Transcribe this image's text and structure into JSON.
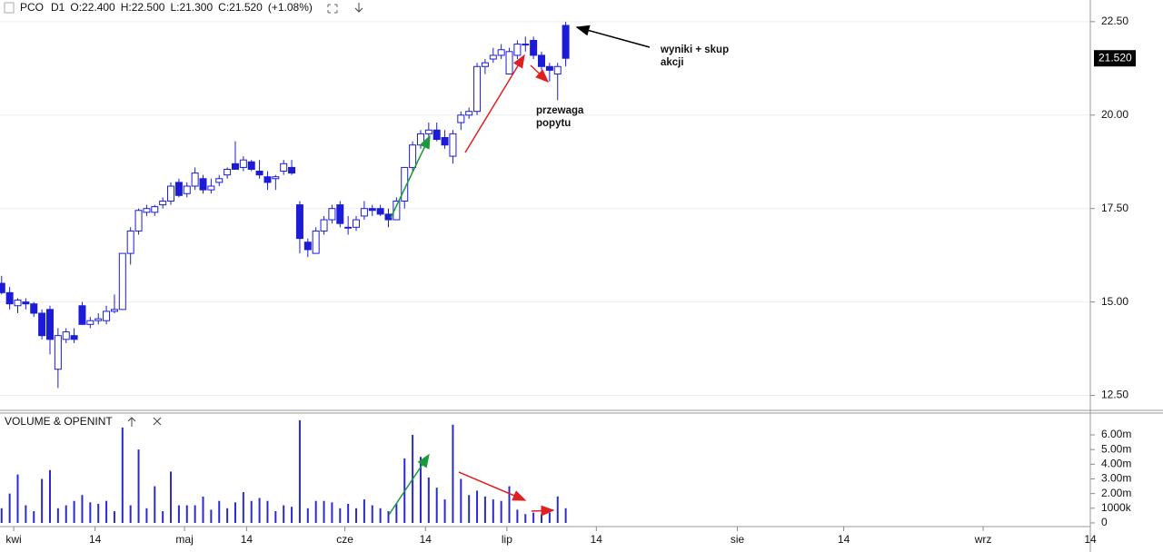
{
  "chart_data": [
    {
      "type": "candlestick",
      "title": "PCO",
      "timeframe": "D1",
      "ohlc_labels": [
        "O:22.400",
        "H:22.500",
        "L:21.300",
        "C:21.520",
        "(+1.08%)"
      ],
      "color_up": "#ffffff",
      "color_down": "#1c1cd8",
      "grid": true,
      "xlim": [
        -0.2,
        135.1
      ],
      "xticks": [
        {
          "value": 1.5,
          "label": "kwi"
        },
        {
          "value": 11.6,
          "label": "14"
        },
        {
          "value": 22.7,
          "label": "maj"
        },
        {
          "value": 30.4,
          "label": "14"
        },
        {
          "value": 42.6,
          "label": "cze"
        },
        {
          "value": 52.6,
          "label": "14"
        },
        {
          "value": 62.7,
          "label": "lip"
        },
        {
          "value": 73.8,
          "label": "14"
        },
        {
          "value": 91.3,
          "label": "sie"
        },
        {
          "value": 104.5,
          "label": "14"
        },
        {
          "value": 121.8,
          "label": "wrz"
        },
        {
          "value": 135.1,
          "label": "14"
        }
      ],
      "ylim": [
        12.1,
        23.08
      ],
      "yticks": [
        {
          "value": 12.5,
          "label": "12.50"
        },
        {
          "value": 15,
          "label": "15.00"
        },
        {
          "value": 17.5,
          "label": "17.50"
        },
        {
          "value": 20,
          "label": "20.00"
        },
        {
          "value": 22.5,
          "label": "22.50"
        }
      ],
      "last_price": {
        "value": 21.52,
        "label": "21.520"
      },
      "open": [
        15.5,
        15.25,
        14.9,
        15.0,
        14.95,
        14.7,
        14.8,
        13.2,
        14.0,
        14.1,
        14.9,
        14.4,
        14.5,
        14.5,
        14.75,
        14.8,
        16.3,
        16.9,
        17.4,
        17.4,
        17.6,
        17.7,
        18.2,
        17.9,
        18.1,
        18.3,
        18.0,
        18.2,
        18.4,
        18.7,
        18.6,
        18.75,
        18.5,
        18.35,
        18.3,
        18.5,
        18.6,
        17.6,
        16.6,
        16.3,
        16.9,
        17.2,
        17.6,
        17.0,
        17.0,
        17.3,
        17.5,
        17.5,
        17.35,
        17.2,
        17.7,
        18.6,
        19.2,
        19.5,
        19.6,
        19.4,
        18.9,
        19.8,
        20.0,
        20.1,
        21.3,
        21.5,
        21.6,
        21.1,
        21.6,
        21.9,
        22.0,
        21.6,
        21.3,
        21.1,
        22.4
      ],
      "high": [
        15.7,
        15.4,
        15.1,
        15.1,
        15.0,
        14.8,
        14.9,
        14.3,
        14.3,
        14.3,
        15.0,
        14.6,
        14.7,
        14.9,
        15.2,
        16.3,
        17.0,
        17.5,
        17.6,
        17.6,
        17.8,
        18.2,
        18.3,
        18.2,
        18.6,
        18.4,
        18.3,
        18.4,
        18.6,
        19.3,
        18.9,
        18.8,
        18.8,
        18.5,
        18.4,
        18.8,
        18.8,
        17.7,
        16.7,
        17.0,
        17.3,
        17.6,
        17.7,
        17.3,
        17.3,
        17.7,
        17.6,
        17.6,
        17.5,
        17.8,
        18.6,
        19.3,
        19.6,
        19.8,
        19.8,
        19.6,
        19.6,
        20.1,
        20.2,
        21.4,
        21.5,
        21.8,
        21.9,
        21.8,
        22.0,
        22.1,
        22.1,
        21.7,
        21.4,
        21.4,
        22.5
      ],
      "low": [
        15.2,
        14.8,
        14.7,
        14.8,
        14.6,
        14.0,
        13.6,
        12.7,
        13.9,
        13.9,
        14.4,
        14.3,
        14.4,
        14.4,
        14.7,
        14.8,
        16.0,
        16.8,
        17.3,
        17.3,
        17.5,
        17.6,
        17.8,
        17.8,
        18.0,
        17.9,
        17.9,
        18.1,
        18.3,
        18.6,
        18.5,
        18.5,
        18.3,
        18.0,
        18.0,
        18.4,
        18.4,
        16.3,
        16.2,
        16.3,
        16.8,
        17.1,
        17.0,
        16.8,
        16.9,
        17.2,
        17.3,
        17.3,
        17.0,
        17.2,
        17.5,
        18.5,
        19.1,
        19.3,
        19.3,
        19.1,
        18.7,
        19.6,
        19.9,
        20.0,
        21.1,
        21.4,
        21.5,
        21.1,
        21.5,
        21.7,
        21.5,
        21.2,
        20.9,
        20.4,
        21.3
      ],
      "close": [
        15.25,
        14.95,
        15.05,
        14.95,
        14.7,
        14.1,
        14.0,
        14.1,
        14.2,
        14.0,
        14.4,
        14.5,
        14.55,
        14.75,
        14.8,
        16.3,
        16.9,
        17.45,
        17.5,
        17.55,
        17.7,
        18.1,
        17.85,
        18.1,
        18.45,
        18.0,
        18.1,
        18.3,
        18.55,
        18.55,
        18.8,
        18.55,
        18.4,
        18.2,
        18.35,
        18.7,
        18.45,
        16.7,
        16.4,
        16.9,
        17.2,
        17.5,
        17.1,
        17.0,
        17.2,
        17.5,
        17.45,
        17.35,
        17.2,
        17.7,
        18.6,
        19.2,
        19.5,
        19.6,
        19.35,
        19.2,
        19.5,
        20.0,
        20.1,
        21.3,
        21.4,
        21.6,
        21.75,
        21.7,
        21.9,
        21.9,
        21.6,
        21.3,
        21.2,
        21.3,
        21.52
      ],
      "annotations": [
        [
          "wyniki + skup",
          "akcji"
        ],
        [
          "przewaga",
          "popytu"
        ]
      ]
    },
    {
      "type": "bar",
      "title": "VOLUME & OPENINT",
      "color": "#2a2ad0",
      "ylim": [
        -0.25,
        7.3
      ],
      "yticks": [
        0,
        {
          "value": 1,
          "label": "1000k"
        },
        {
          "value": 2,
          "label": "2.00m"
        },
        {
          "value": 3,
          "label": "3.00m"
        },
        {
          "value": 4,
          "label": "4.00m"
        },
        {
          "value": 5,
          "label": "5.00m"
        },
        {
          "value": 6,
          "label": "6.00m"
        }
      ],
      "values": [
        1.0,
        2.0,
        3.3,
        1.2,
        0.8,
        3.0,
        3.6,
        1.0,
        1.2,
        1.5,
        1.9,
        1.4,
        1.3,
        1.5,
        0.8,
        6.5,
        1.2,
        5.0,
        1.0,
        2.5,
        0.8,
        3.5,
        1.2,
        1.2,
        1.2,
        1.8,
        0.9,
        1.5,
        1.0,
        1.4,
        2.1,
        1.5,
        1.7,
        1.5,
        0.8,
        1.2,
        1.1,
        7.0,
        1.0,
        1.5,
        1.5,
        1.4,
        1.0,
        1.3,
        1.0,
        1.6,
        1.2,
        1.0,
        0.8,
        1.3,
        4.4,
        6.0,
        4.5,
        3.1,
        2.4,
        1.6,
        6.7,
        3.0,
        1.9,
        2.2,
        1.8,
        1.6,
        1.5,
        2.5,
        0.9,
        0.6,
        0.7,
        0.6,
        0.7,
        1.8,
        1.0
      ]
    }
  ]
}
